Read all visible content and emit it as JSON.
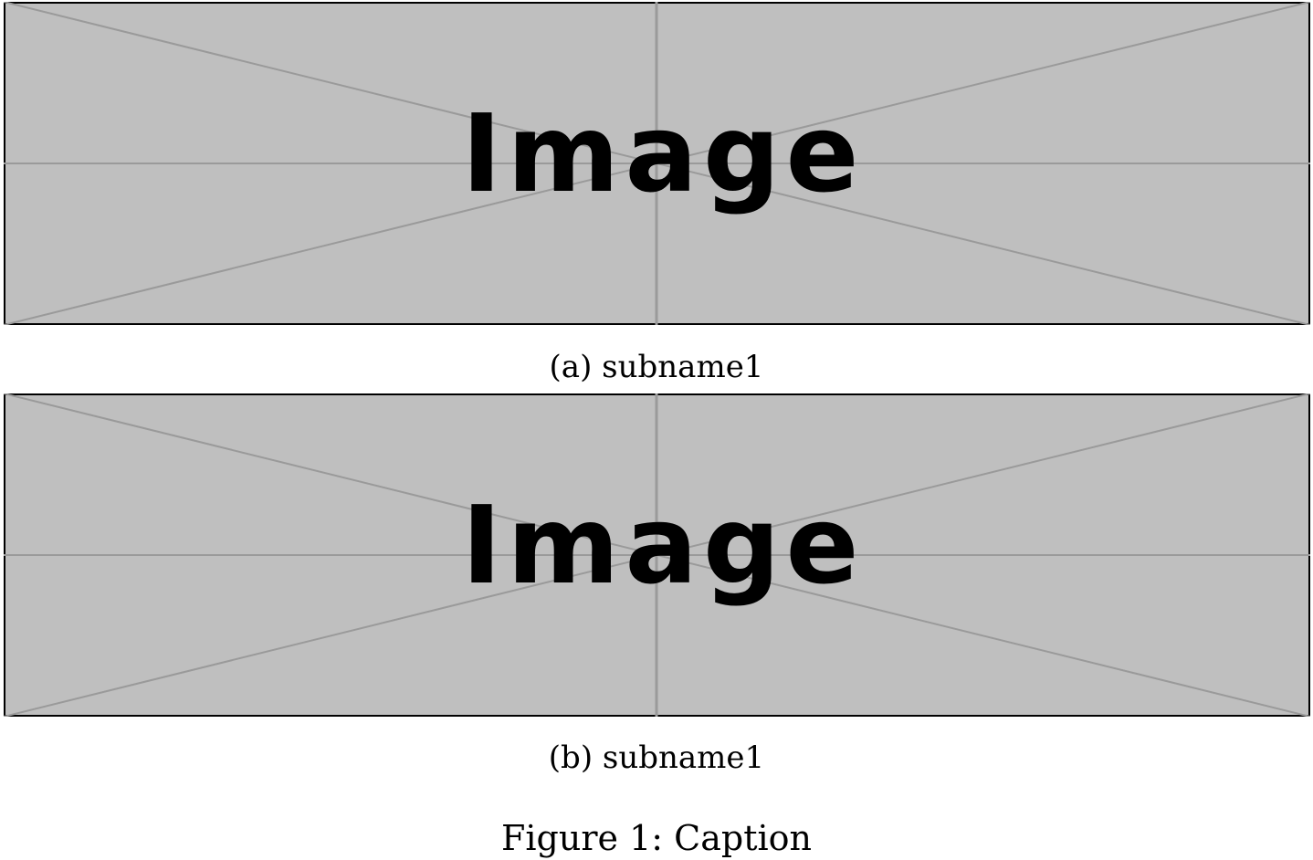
{
  "figure": {
    "label": "Figure 1:",
    "caption": "Caption",
    "placeholder_fill": "#bfbfbf",
    "placeholder_line": "#9a9a9a",
    "subfigures": [
      {
        "tag": "(a)",
        "name": "subname1",
        "placeholder_text": "Image"
      },
      {
        "tag": "(b)",
        "name": "subname1",
        "placeholder_text": "Image"
      }
    ]
  }
}
